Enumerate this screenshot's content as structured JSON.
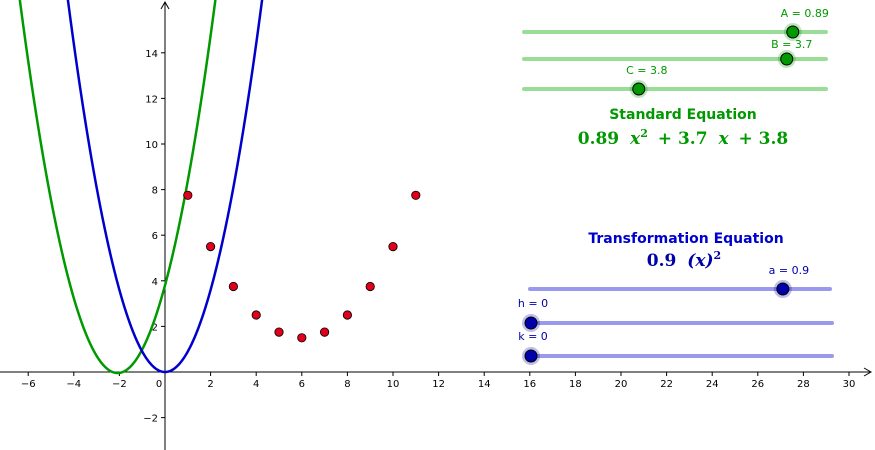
{
  "colors": {
    "green": "#009900",
    "green_dark": "#007a00",
    "green_track": "#99dd99",
    "blue": "#0000cc",
    "blue_dark": "#0000aa",
    "blue_track": "#9999ee",
    "point_red": "#e0001b",
    "axis": "#000000"
  },
  "axes": {
    "x_ticks": [
      "−6",
      "−4",
      "−2",
      "0",
      "2",
      "4",
      "6",
      "8",
      "10",
      "12",
      "14",
      "16",
      "18",
      "20",
      "22",
      "24",
      "26",
      "28",
      "30"
    ],
    "y_ticks": [
      "−2",
      "2",
      "4",
      "6",
      "8",
      "10",
      "12",
      "14"
    ]
  },
  "sliders_standard": [
    {
      "name": "A",
      "value": 0.89,
      "label": "A = 0.89",
      "min": 0,
      "max": 1
    },
    {
      "name": "B",
      "value": 3.7,
      "label": "B = 3.7",
      "min": -5,
      "max": 5
    },
    {
      "name": "C",
      "value": 3.8,
      "label": "C = 3.8",
      "min": 0,
      "max": 10
    }
  ],
  "sliders_transformation": [
    {
      "name": "a",
      "value": 0.9,
      "label": "a = 0.9",
      "min": -5,
      "max": 2
    },
    {
      "name": "h",
      "value": 0,
      "label": "h = 0",
      "min": 0,
      "max": 10
    },
    {
      "name": "k",
      "value": 0,
      "label": "k = 0",
      "min": 0,
      "max": 10
    }
  ],
  "standard": {
    "heading": "Standard Equation",
    "equation_parts": [
      "0.89",
      "x",
      "2",
      "+ 3.7",
      "x",
      "+ 3.8"
    ]
  },
  "transformation": {
    "heading": "Transformation Equation",
    "equation_parts": [
      "0.9",
      "(x)",
      "2"
    ]
  },
  "chart_data": {
    "type": "scatter",
    "xlim": [
      -7,
      32
    ],
    "ylim": [
      -3.4,
      16.3
    ],
    "grid": false,
    "points": [
      {
        "x": 1,
        "y": 7.75
      },
      {
        "x": 2,
        "y": 5.5
      },
      {
        "x": 3,
        "y": 3.75
      },
      {
        "x": 4,
        "y": 2.5
      },
      {
        "x": 5,
        "y": 1.75
      },
      {
        "x": 6,
        "y": 1.5
      },
      {
        "x": 7,
        "y": 1.75
      },
      {
        "x": 8,
        "y": 2.5
      },
      {
        "x": 9,
        "y": 3.75
      },
      {
        "x": 10,
        "y": 5.5
      },
      {
        "x": 11,
        "y": 7.75
      }
    ],
    "curves": [
      {
        "name": "standard",
        "a": 0.89,
        "b": 3.7,
        "c": 3.8
      },
      {
        "name": "transformation",
        "a": 0.9,
        "h": 0,
        "k": 0
      }
    ]
  }
}
